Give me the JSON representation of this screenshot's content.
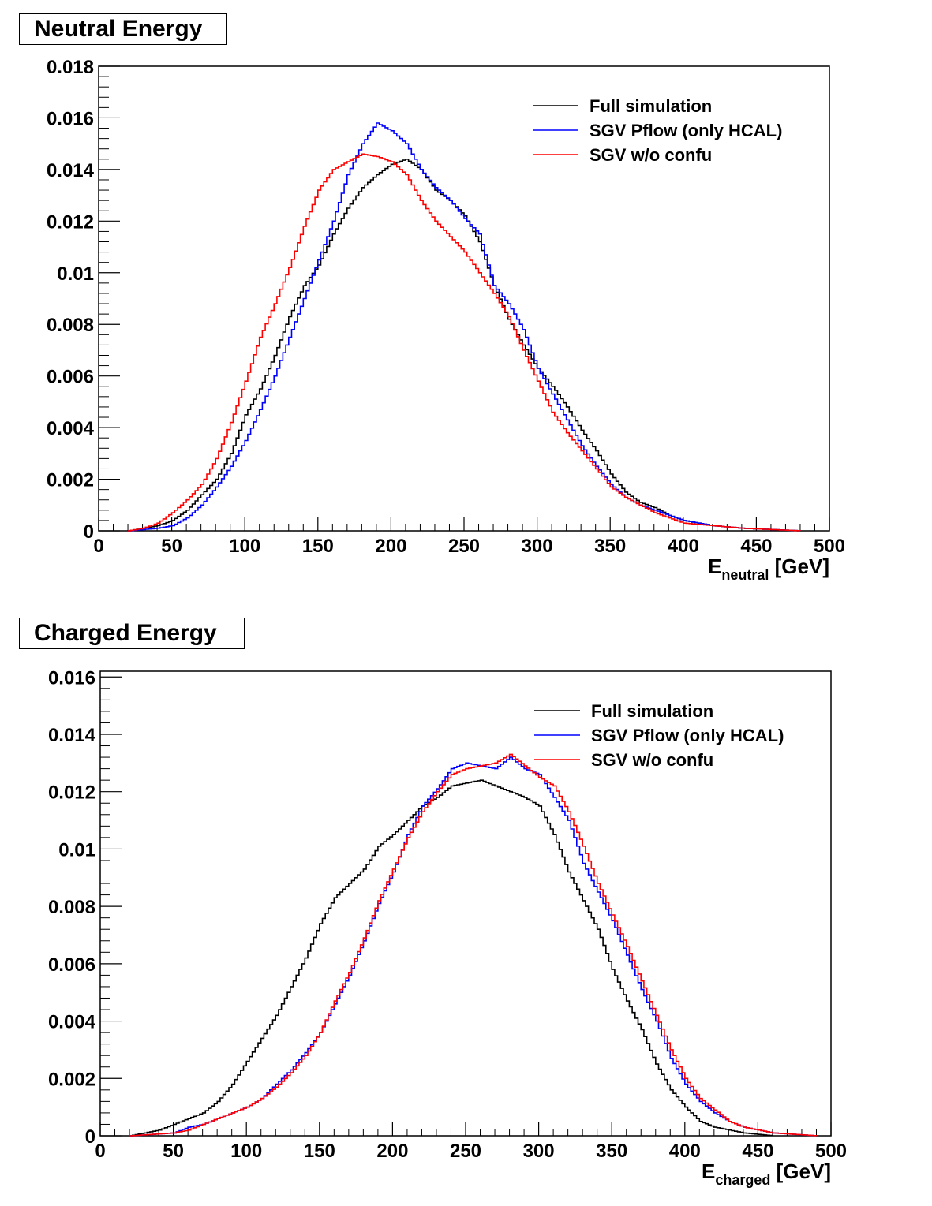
{
  "colors": {
    "full": "#000000",
    "pflow": "#0000ff",
    "noconf": "#ff0000"
  },
  "chart_data": [
    {
      "type": "line",
      "title": "Neutral Energy",
      "xlabel_main": "E",
      "xlabel_sub": "neutral",
      "xlabel_unit": "[GeV]",
      "xlim": [
        0,
        500
      ],
      "ylim": [
        0,
        0.018
      ],
      "xticks": [
        "0",
        "50",
        "100",
        "150",
        "200",
        "250",
        "300",
        "350",
        "400",
        "450",
        "500"
      ],
      "yticks": [
        "0",
        "0.002",
        "0.004",
        "0.006",
        "0.008",
        "0.01",
        "0.012",
        "0.014",
        "0.016",
        "0.018"
      ],
      "legend_position": "top-right",
      "series": [
        {
          "name": "Full simulation",
          "points": [
            [
              20,
              0
            ],
            [
              40,
              0.0002
            ],
            [
              50,
              0.0004
            ],
            [
              60,
              0.0008
            ],
            [
              70,
              0.0014
            ],
            [
              80,
              0.002
            ],
            [
              90,
              0.003
            ],
            [
              100,
              0.0045
            ],
            [
              110,
              0.0055
            ],
            [
              120,
              0.0068
            ],
            [
              130,
              0.0083
            ],
            [
              140,
              0.0095
            ],
            [
              150,
              0.0103
            ],
            [
              160,
              0.0115
            ],
            [
              170,
              0.0125
            ],
            [
              180,
              0.0133
            ],
            [
              190,
              0.0138
            ],
            [
              200,
              0.0142
            ],
            [
              210,
              0.0144
            ],
            [
              220,
              0.014
            ],
            [
              230,
              0.0132
            ],
            [
              240,
              0.0128
            ],
            [
              250,
              0.0122
            ],
            [
              260,
              0.0112
            ],
            [
              270,
              0.0095
            ],
            [
              280,
              0.0082
            ],
            [
              290,
              0.0072
            ],
            [
              300,
              0.0063
            ],
            [
              310,
              0.0056
            ],
            [
              320,
              0.0048
            ],
            [
              330,
              0.0039
            ],
            [
              340,
              0.0031
            ],
            [
              350,
              0.0022
            ],
            [
              360,
              0.0015
            ],
            [
              370,
              0.0011
            ],
            [
              380,
              0.0009
            ],
            [
              390,
              0.0006
            ],
            [
              400,
              0.0004
            ],
            [
              420,
              0.0002
            ],
            [
              440,
              0.0001
            ],
            [
              480,
              0
            ]
          ]
        },
        {
          "name": "SGV Pflow (only HCAL)",
          "points": [
            [
              20,
              0
            ],
            [
              40,
              0.0001
            ],
            [
              50,
              0.0002
            ],
            [
              60,
              0.0005
            ],
            [
              70,
              0.001
            ],
            [
              80,
              0.0017
            ],
            [
              90,
              0.0025
            ],
            [
              100,
              0.0035
            ],
            [
              110,
              0.0047
            ],
            [
              120,
              0.006
            ],
            [
              130,
              0.0075
            ],
            [
              140,
              0.009
            ],
            [
              150,
              0.0105
            ],
            [
              160,
              0.012
            ],
            [
              170,
              0.0138
            ],
            [
              180,
              0.015
            ],
            [
              190,
              0.0158
            ],
            [
              200,
              0.0155
            ],
            [
              210,
              0.015
            ],
            [
              220,
              0.014
            ],
            [
              230,
              0.0133
            ],
            [
              240,
              0.0128
            ],
            [
              250,
              0.0121
            ],
            [
              260,
              0.0115
            ],
            [
              270,
              0.0095
            ],
            [
              280,
              0.0088
            ],
            [
              290,
              0.0078
            ],
            [
              300,
              0.0063
            ],
            [
              310,
              0.0053
            ],
            [
              320,
              0.0043
            ],
            [
              330,
              0.0033
            ],
            [
              340,
              0.0025
            ],
            [
              350,
              0.0018
            ],
            [
              360,
              0.0013
            ],
            [
              370,
              0.001
            ],
            [
              380,
              0.0008
            ],
            [
              390,
              0.0006
            ],
            [
              400,
              0.0004
            ],
            [
              420,
              0.0002
            ],
            [
              440,
              0.0001
            ],
            [
              480,
              0
            ]
          ]
        },
        {
          "name": "SGV w/o confu",
          "points": [
            [
              20,
              0
            ],
            [
              30,
              0.0001
            ],
            [
              40,
              0.0003
            ],
            [
              50,
              0.0007
            ],
            [
              60,
              0.0012
            ],
            [
              70,
              0.0018
            ],
            [
              80,
              0.0028
            ],
            [
              90,
              0.0042
            ],
            [
              100,
              0.0058
            ],
            [
              110,
              0.0075
            ],
            [
              120,
              0.0088
            ],
            [
              130,
              0.0102
            ],
            [
              140,
              0.0118
            ],
            [
              150,
              0.0132
            ],
            [
              160,
              0.014
            ],
            [
              170,
              0.0143
            ],
            [
              180,
              0.0146
            ],
            [
              190,
              0.0145
            ],
            [
              200,
              0.0143
            ],
            [
              210,
              0.0138
            ],
            [
              220,
              0.0128
            ],
            [
              230,
              0.012
            ],
            [
              240,
              0.0114
            ],
            [
              250,
              0.0108
            ],
            [
              260,
              0.01
            ],
            [
              270,
              0.0092
            ],
            [
              280,
              0.0083
            ],
            [
              290,
              0.007
            ],
            [
              300,
              0.0058
            ],
            [
              310,
              0.0046
            ],
            [
              320,
              0.0038
            ],
            [
              330,
              0.0031
            ],
            [
              340,
              0.0024
            ],
            [
              350,
              0.0017
            ],
            [
              360,
              0.0013
            ],
            [
              370,
              0.001
            ],
            [
              380,
              0.0007
            ],
            [
              390,
              0.0005
            ],
            [
              400,
              0.0003
            ],
            [
              420,
              0.0002
            ],
            [
              440,
              0.0001
            ],
            [
              480,
              0
            ]
          ]
        }
      ]
    },
    {
      "type": "line",
      "title": "Charged Energy",
      "xlabel_main": "E",
      "xlabel_sub": "charged",
      "xlabel_unit": "[GeV]",
      "xlim": [
        0,
        500
      ],
      "ylim": [
        0,
        0.0162
      ],
      "xticks": [
        "0",
        "50",
        "100",
        "150",
        "200",
        "250",
        "300",
        "350",
        "400",
        "450",
        "500"
      ],
      "yticks": [
        "0",
        "0.002",
        "0.004",
        "0.006",
        "0.008",
        "0.01",
        "0.012",
        "0.014",
        "0.016"
      ],
      "legend_position": "top-right",
      "series": [
        {
          "name": "Full simulation",
          "points": [
            [
              20,
              0
            ],
            [
              40,
              0.0002
            ],
            [
              50,
              0.0004
            ],
            [
              60,
              0.0006
            ],
            [
              70,
              0.0008
            ],
            [
              80,
              0.0012
            ],
            [
              90,
              0.0018
            ],
            [
              100,
              0.0026
            ],
            [
              110,
              0.0034
            ],
            [
              120,
              0.0042
            ],
            [
              130,
              0.0052
            ],
            [
              140,
              0.0062
            ],
            [
              150,
              0.0074
            ],
            [
              160,
              0.0083
            ],
            [
              170,
              0.0088
            ],
            [
              180,
              0.0093
            ],
            [
              190,
              0.0101
            ],
            [
              200,
              0.0105
            ],
            [
              210,
              0.011
            ],
            [
              220,
              0.0115
            ],
            [
              230,
              0.0118
            ],
            [
              240,
              0.0122
            ],
            [
              250,
              0.0123
            ],
            [
              260,
              0.0124
            ],
            [
              270,
              0.0122
            ],
            [
              280,
              0.012
            ],
            [
              290,
              0.0118
            ],
            [
              300,
              0.0115
            ],
            [
              310,
              0.0105
            ],
            [
              320,
              0.0092
            ],
            [
              330,
              0.0082
            ],
            [
              340,
              0.0072
            ],
            [
              350,
              0.0058
            ],
            [
              360,
              0.0047
            ],
            [
              370,
              0.0037
            ],
            [
              380,
              0.0025
            ],
            [
              390,
              0.0016
            ],
            [
              400,
              0.001
            ],
            [
              410,
              0.0005
            ],
            [
              420,
              0.0003
            ],
            [
              440,
              0.0001
            ],
            [
              460,
              0
            ]
          ]
        },
        {
          "name": "SGV Pflow (only HCAL)",
          "points": [
            [
              20,
              0
            ],
            [
              50,
              0.0001
            ],
            [
              60,
              0.0003
            ],
            [
              70,
              0.0004
            ],
            [
              80,
              0.0006
            ],
            [
              90,
              0.0008
            ],
            [
              100,
              0.001
            ],
            [
              110,
              0.0013
            ],
            [
              120,
              0.0018
            ],
            [
              130,
              0.0023
            ],
            [
              140,
              0.0029
            ],
            [
              150,
              0.0036
            ],
            [
              160,
              0.0046
            ],
            [
              170,
              0.0056
            ],
            [
              180,
              0.0068
            ],
            [
              190,
              0.0081
            ],
            [
              200,
              0.0092
            ],
            [
              210,
              0.0105
            ],
            [
              220,
              0.0115
            ],
            [
              230,
              0.0121
            ],
            [
              240,
              0.0128
            ],
            [
              250,
              0.013
            ],
            [
              260,
              0.0129
            ],
            [
              270,
              0.0128
            ],
            [
              280,
              0.0132
            ],
            [
              290,
              0.0128
            ],
            [
              300,
              0.0126
            ],
            [
              310,
              0.0118
            ],
            [
              320,
              0.011
            ],
            [
              330,
              0.0095
            ],
            [
              340,
              0.0085
            ],
            [
              350,
              0.0075
            ],
            [
              360,
              0.0063
            ],
            [
              370,
              0.0051
            ],
            [
              380,
              0.004
            ],
            [
              390,
              0.0027
            ],
            [
              400,
              0.0018
            ],
            [
              410,
              0.0012
            ],
            [
              420,
              0.0008
            ],
            [
              430,
              0.0005
            ],
            [
              440,
              0.0003
            ],
            [
              460,
              0.0001
            ],
            [
              490,
              0
            ]
          ]
        },
        {
          "name": "SGV w/o confu",
          "points": [
            [
              20,
              0
            ],
            [
              50,
              0.0001
            ],
            [
              60,
              0.0002
            ],
            [
              70,
              0.0004
            ],
            [
              80,
              0.0006
            ],
            [
              90,
              0.0008
            ],
            [
              100,
              0.001
            ],
            [
              110,
              0.0013
            ],
            [
              120,
              0.0017
            ],
            [
              130,
              0.0022
            ],
            [
              140,
              0.0028
            ],
            [
              150,
              0.0036
            ],
            [
              160,
              0.0047
            ],
            [
              170,
              0.0057
            ],
            [
              180,
              0.0069
            ],
            [
              190,
              0.0082
            ],
            [
              200,
              0.0093
            ],
            [
              210,
              0.0104
            ],
            [
              220,
              0.0113
            ],
            [
              230,
              0.012
            ],
            [
              240,
              0.0126
            ],
            [
              250,
              0.0128
            ],
            [
              260,
              0.0129
            ],
            [
              270,
              0.013
            ],
            [
              280,
              0.0133
            ],
            [
              290,
              0.0129
            ],
            [
              300,
              0.0125
            ],
            [
              310,
              0.0122
            ],
            [
              320,
              0.0113
            ],
            [
              330,
              0.0101
            ],
            [
              340,
              0.0088
            ],
            [
              350,
              0.0077
            ],
            [
              360,
              0.0066
            ],
            [
              370,
              0.0054
            ],
            [
              380,
              0.0042
            ],
            [
              390,
              0.003
            ],
            [
              400,
              0.002
            ],
            [
              410,
              0.0013
            ],
            [
              420,
              0.0009
            ],
            [
              430,
              0.0005
            ],
            [
              440,
              0.0003
            ],
            [
              460,
              0.0001
            ],
            [
              490,
              0
            ]
          ]
        }
      ]
    }
  ]
}
